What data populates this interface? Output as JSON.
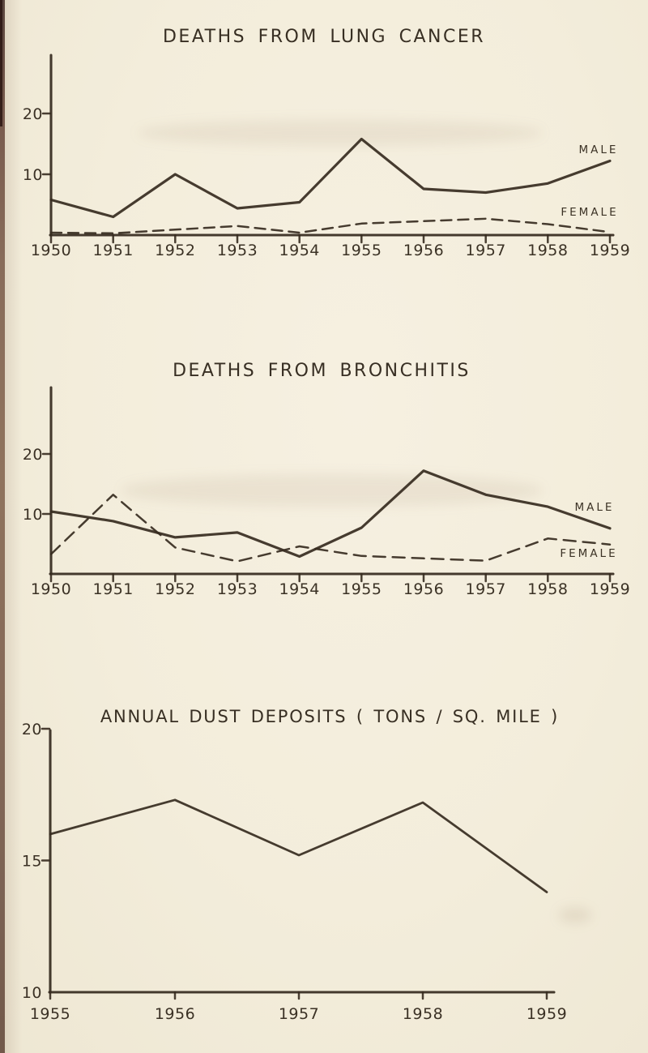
{
  "page": {
    "background_color": "#f3eddc",
    "ink_color": "#362b1f",
    "spine_edge_color": "#45261f"
  },
  "chart_data": [
    {
      "type": "line",
      "title": "DEATHS FROM LUNG CANCER",
      "x": [
        1950,
        1951,
        1952,
        1953,
        1954,
        1955,
        1956,
        1957,
        1958,
        1959
      ],
      "xlabel": "",
      "ylabel": "",
      "y_ticks": [
        10,
        20
      ],
      "ylim": [
        0,
        29
      ],
      "grid": false,
      "legend_position": "inline-right",
      "series": [
        {
          "name": "MALE",
          "line_style": "solid",
          "values": [
            5.8,
            3.0,
            10.0,
            4.4,
            5.4,
            15.8,
            7.6,
            7.0,
            8.5,
            12.2
          ]
        },
        {
          "name": "FEMALE",
          "line_style": "dashed",
          "values": [
            0.4,
            0.3,
            0.9,
            1.5,
            0.4,
            1.9,
            2.3,
            2.7,
            1.8,
            0.5
          ]
        }
      ]
    },
    {
      "type": "line",
      "title": "DEATHS FROM BRONCHITIS",
      "x": [
        1950,
        1951,
        1952,
        1953,
        1954,
        1955,
        1956,
        1957,
        1958,
        1959
      ],
      "xlabel": "",
      "ylabel": "",
      "y_ticks": [
        10,
        20
      ],
      "ylim": [
        0,
        31
      ],
      "grid": false,
      "legend_position": "inline-right",
      "series": [
        {
          "name": "MALE",
          "line_style": "solid",
          "values": [
            10.4,
            8.8,
            6.1,
            6.9,
            2.9,
            7.7,
            17.2,
            13.2,
            11.2,
            7.6
          ]
        },
        {
          "name": "FEMALE",
          "line_style": "dashed",
          "values": [
            3.3,
            13.2,
            4.4,
            2.1,
            4.6,
            3.0,
            2.6,
            2.2,
            5.9,
            4.9
          ]
        }
      ]
    },
    {
      "type": "line",
      "title": "ANNUAL DUST DEPOSITS ( TONS / SQ. MILE )",
      "x": [
        1955,
        1956,
        1957,
        1958,
        1959
      ],
      "xlabel": "",
      "ylabel": "",
      "y_ticks": [
        10,
        15,
        20
      ],
      "ylim": [
        10,
        20
      ],
      "grid": false,
      "legend_position": "none",
      "series": [
        {
          "name": "",
          "line_style": "solid",
          "values": [
            16.0,
            17.3,
            15.2,
            17.2,
            13.8
          ]
        }
      ]
    }
  ]
}
